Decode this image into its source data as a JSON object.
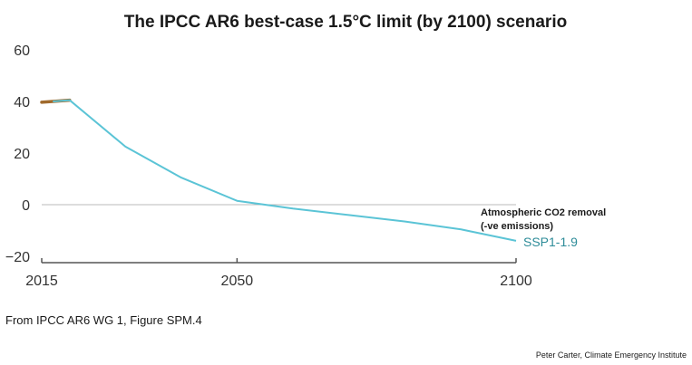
{
  "colors": {
    "series_line": "#5bc4d6",
    "historical_line": "#a06a2c",
    "series_label": "#2e8c99",
    "zero_line": "#bbbbbb",
    "x_axis": "#555555",
    "text": "#1a1a1a"
  },
  "source_note": "From  IPCC AR6  WG 1, Figure SPM.4",
  "credit": "Peter Carter, Climate Emergency Institute",
  "chart_data": {
    "type": "line",
    "title": "The IPCC AR6 best-case  1.5°C limit (by 2100) scenario",
    "xlabel": "",
    "ylabel": "",
    "xlim": [
      2015,
      2100
    ],
    "ylim": [
      -20,
      60
    ],
    "x_ticks": [
      2015,
      2050,
      2100
    ],
    "y_ticks": [
      60,
      40,
      20,
      0,
      -20
    ],
    "y_tick_labels": [
      "60",
      "40",
      "20",
      "0",
      "−20"
    ],
    "grid": false,
    "zero_line": true,
    "series": [
      {
        "name": "SSP1-1.9",
        "x": [
          2017,
          2020,
          2030,
          2040,
          2050,
          2060,
          2070,
          2080,
          2090,
          2100
        ],
        "y": [
          40,
          40.5,
          22.5,
          10.5,
          1.5,
          -1.5,
          -4,
          -6.5,
          -9.5,
          -14
        ]
      }
    ],
    "historical": {
      "x": [
        2015,
        2020
      ],
      "y": [
        39.7,
        40.5
      ]
    },
    "annotations": [
      "Atmospheric CO2 removal",
      "(-ve emissions)"
    ]
  }
}
